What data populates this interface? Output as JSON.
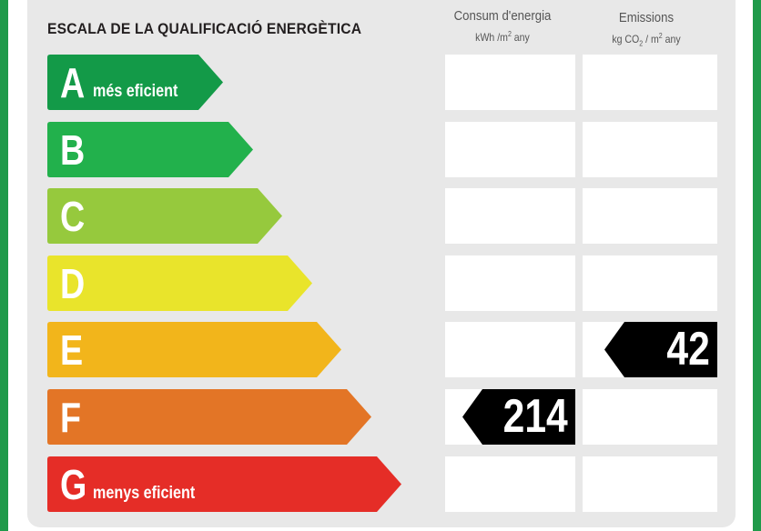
{
  "title": "ESCALA DE LA QUALIFICACIÓ ENERGÈTICA",
  "columns": {
    "energy": {
      "label": "Consum d'energia",
      "unit_a": "kWh /m",
      "unit_sup": "2",
      "unit_b": " any"
    },
    "emissions": {
      "label": "Emissions",
      "unit_a": "kg CO",
      "unit_sub": "2",
      "unit_b": " / m",
      "unit_sup": "2",
      "unit_c": " any"
    }
  },
  "rows": [
    {
      "letter": "A",
      "note": "més eficient",
      "color": "#139a48"
    },
    {
      "letter": "B",
      "note": "",
      "color": "#22b14c"
    },
    {
      "letter": "C",
      "note": "",
      "color": "#96c93d"
    },
    {
      "letter": "D",
      "note": "",
      "color": "#e9e42b"
    },
    {
      "letter": "E",
      "note": "",
      "color": "#f2b51b"
    },
    {
      "letter": "F",
      "note": "",
      "color": "#e37526"
    },
    {
      "letter": "G",
      "note": "menys eficient",
      "color": "#e52d27"
    }
  ],
  "ratings": {
    "energy": {
      "value": "214",
      "class": "F"
    },
    "emissions": {
      "value": "42",
      "class": "E"
    }
  }
}
